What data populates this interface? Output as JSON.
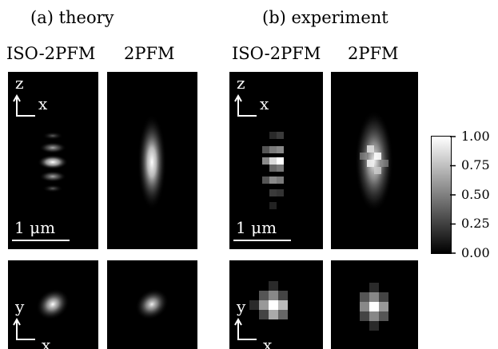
{
  "headings": {
    "theory": "(a)  theory",
    "experiment": "(b)  experiment"
  },
  "columns": [
    "ISO-2PFM",
    "2PFM",
    "ISO-2PFM",
    "2PFM"
  ],
  "axis_labels": {
    "z": "z",
    "x": "x",
    "y": "y"
  },
  "scale_label": "1 μm",
  "colorbar": {
    "ticks": [
      "1.00",
      "0.75",
      "0.50",
      "0.25",
      "0.00"
    ],
    "values": [
      1.0,
      0.75,
      0.5,
      0.25,
      0.0
    ]
  },
  "colors": {
    "panel_bg": "#000000",
    "label": "#ffffff"
  }
}
